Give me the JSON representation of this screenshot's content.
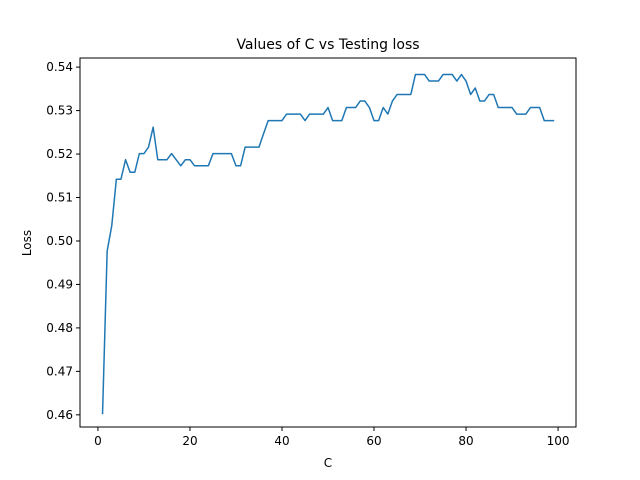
{
  "chart_data": {
    "type": "line",
    "title": "Values of C vs Testing loss",
    "xlabel": "C",
    "ylabel": "Loss",
    "xlim": [
      -3.9,
      103.9
    ],
    "ylim": [
      0.4572,
      0.5421
    ],
    "xticks": [
      0,
      20,
      40,
      60,
      80,
      100
    ],
    "xtick_labels": [
      "0",
      "20",
      "40",
      "60",
      "80",
      "100"
    ],
    "yticks": [
      0.46,
      0.47,
      0.48,
      0.49,
      0.5,
      0.51,
      0.52,
      0.53,
      0.54
    ],
    "ytick_labels": [
      "0.46",
      "0.47",
      "0.48",
      "0.49",
      "0.50",
      "0.51",
      "0.52",
      "0.53",
      "0.54"
    ],
    "grid": false,
    "line_color": "#1f77b4",
    "series": [
      {
        "x": [
          1,
          2,
          3,
          4,
          5,
          6,
          7,
          8,
          9,
          10,
          11,
          12,
          13,
          14,
          15,
          16,
          17,
          18,
          19,
          20,
          21,
          22,
          23,
          24,
          25,
          26,
          27,
          28,
          29,
          30,
          31,
          32,
          33,
          34,
          35,
          36,
          37,
          38,
          39,
          40,
          41,
          42,
          43,
          44,
          45,
          46,
          47,
          48,
          49,
          50,
          51,
          52,
          53,
          54,
          55,
          56,
          57,
          58,
          59,
          60,
          61,
          62,
          63,
          64,
          65,
          66,
          67,
          68,
          69,
          70,
          71,
          72,
          73,
          74,
          75,
          76,
          77,
          78,
          79,
          80,
          81,
          82,
          83,
          84,
          85,
          86,
          87,
          88,
          89,
          90,
          91,
          92,
          93,
          94,
          95,
          96,
          97,
          98,
          99
        ],
        "values": [
          0.4603,
          0.4977,
          0.5035,
          0.5142,
          0.5142,
          0.5187,
          0.5158,
          0.5158,
          0.5201,
          0.5201,
          0.5216,
          0.5262,
          0.5187,
          0.5187,
          0.5187,
          0.5201,
          0.5187,
          0.5173,
          0.5187,
          0.5187,
          0.5173,
          0.5173,
          0.5173,
          0.5173,
          0.5201,
          0.5201,
          0.5201,
          0.5201,
          0.5201,
          0.5173,
          0.5173,
          0.5216,
          0.5216,
          0.5216,
          0.5216,
          0.5247,
          0.5277,
          0.5277,
          0.5277,
          0.5277,
          0.5292,
          0.5292,
          0.5292,
          0.5292,
          0.5277,
          0.5292,
          0.5292,
          0.5292,
          0.5292,
          0.5307,
          0.5277,
          0.5277,
          0.5277,
          0.5307,
          0.5307,
          0.5307,
          0.5322,
          0.5322,
          0.5307,
          0.5277,
          0.5277,
          0.5307,
          0.5292,
          0.5322,
          0.5337,
          0.5337,
          0.5337,
          0.5337,
          0.5383,
          0.5383,
          0.5383,
          0.5368,
          0.5368,
          0.5368,
          0.5383,
          0.5383,
          0.5383,
          0.5368,
          0.5383,
          0.5368,
          0.5337,
          0.5352,
          0.5322,
          0.5322,
          0.5337,
          0.5337,
          0.5307,
          0.5307,
          0.5307,
          0.5307,
          0.5292,
          0.5292,
          0.5292,
          0.5307,
          0.5307,
          0.5307,
          0.5277,
          0.5277,
          0.5277
        ]
      }
    ]
  }
}
